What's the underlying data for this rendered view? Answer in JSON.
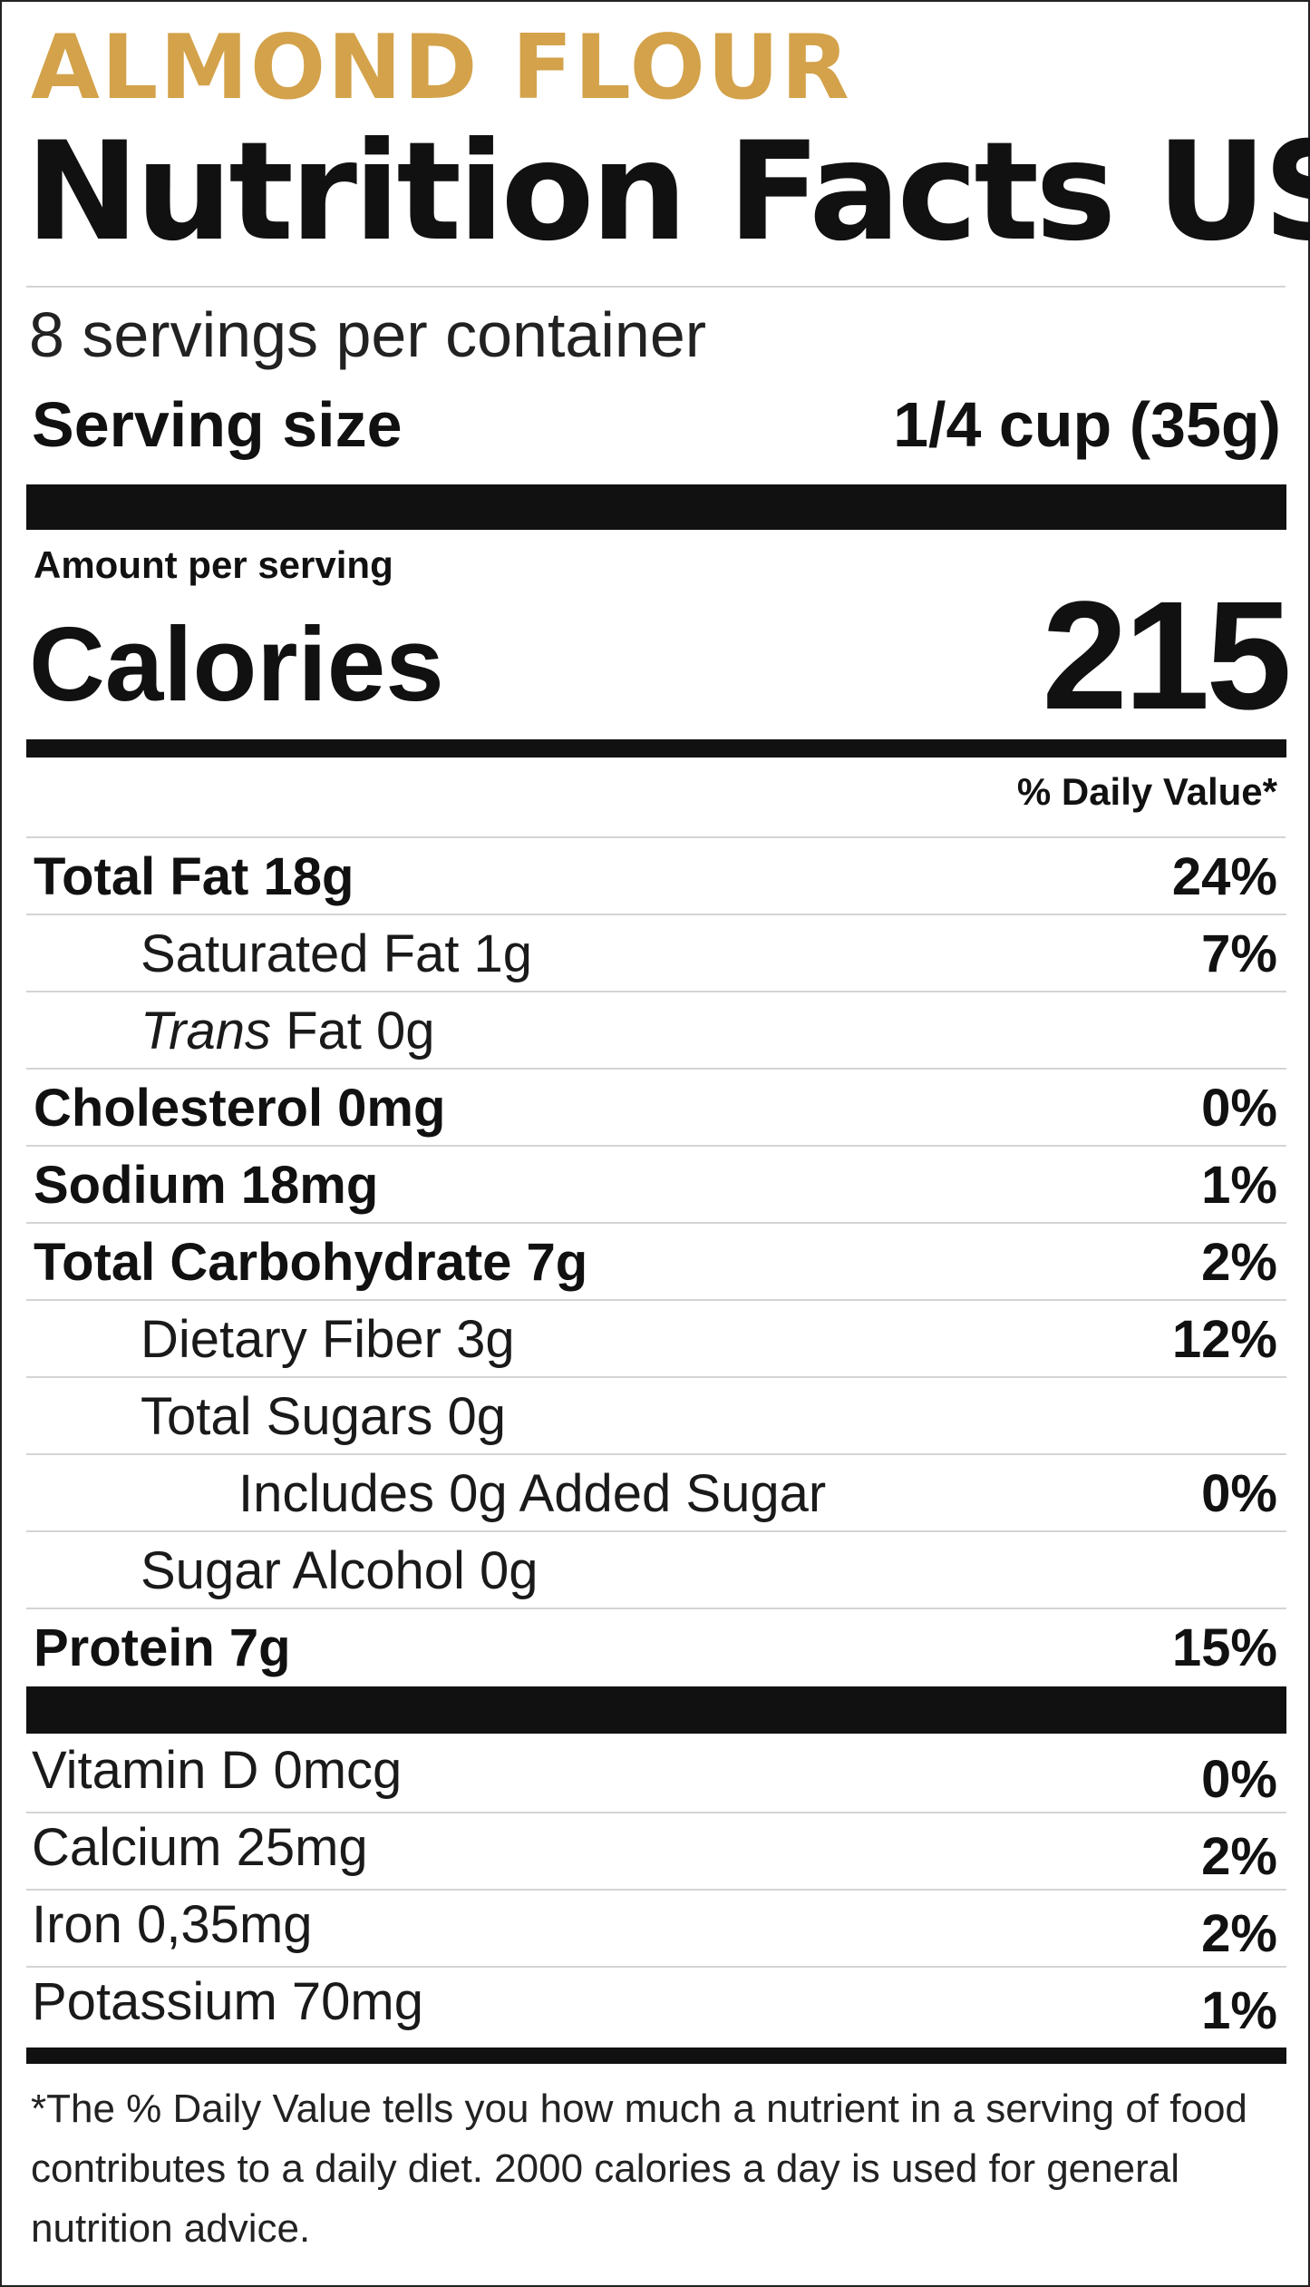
{
  "brand": "ALMOND FLOUR",
  "title": "Nutrition Facts US",
  "servings_per_container": "8 servings per container",
  "serving_size": {
    "label": "Serving size",
    "value": "1/4 cup (35g)"
  },
  "amount_per_serving": "Amount per serving",
  "calories": {
    "label": "Calories",
    "value": "215"
  },
  "daily_value_header": "% Daily Value*",
  "nutrients": [
    {
      "name": "Total Fat 18g",
      "dv": "24%",
      "bold": true,
      "indent": 0
    },
    {
      "name": "Saturated Fat 1g",
      "dv": "7%",
      "bold": false,
      "indent": 1
    },
    {
      "name_italic": "Trans",
      "name": " Fat 0g",
      "dv": "",
      "bold": false,
      "indent": 1
    },
    {
      "name": "Cholesterol 0mg",
      "dv": "0%",
      "bold": true,
      "indent": 0
    },
    {
      "name": "Sodium 18mg",
      "dv": "1%",
      "bold": true,
      "indent": 0
    },
    {
      "name": "Total Carbohydrate 7g",
      "dv": "2%",
      "bold": true,
      "indent": 0
    },
    {
      "name": "Dietary Fiber 3g",
      "dv": "12%",
      "bold": false,
      "indent": 1
    },
    {
      "name": "Total Sugars 0g",
      "dv": "",
      "bold": false,
      "indent": 1
    },
    {
      "name": "Includes 0g Added Sugar",
      "dv": "0%",
      "bold": false,
      "indent": 2
    },
    {
      "name": "Sugar Alcohol 0g",
      "dv": "",
      "bold": false,
      "indent": 1
    },
    {
      "name": "Protein 7g",
      "dv": "15%",
      "bold": true,
      "indent": 0
    }
  ],
  "vitamins": [
    {
      "name": "Vitamin D 0mcg",
      "dv": "0%"
    },
    {
      "name": "Calcium 25mg",
      "dv": "2%"
    },
    {
      "name": "Iron 0,35mg",
      "dv": "2%"
    },
    {
      "name": "Potassium 70mg",
      "dv": "1%"
    }
  ],
  "footnote": "*The % Daily Value tells you how much a nutrient in a serving of food contributes to a daily diet. 2000 calories a day is used for general nutrition advice.",
  "colors": {
    "brand": "#d3a24a",
    "text": "#111111",
    "divider": "#d4d4d4",
    "bar": "#111111"
  }
}
